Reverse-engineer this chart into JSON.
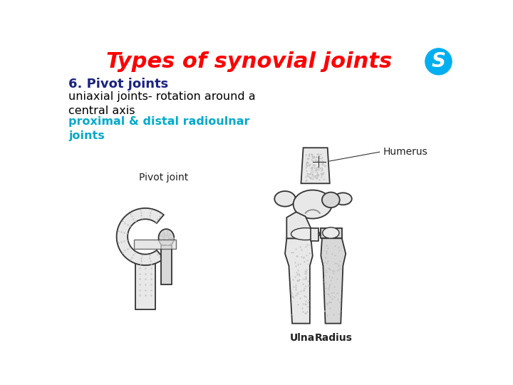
{
  "title": "Types of synovial joints",
  "title_color": "#FF0000",
  "title_fontsize": 22,
  "background_color": "#FFFFFF",
  "heading_text": "6. Pivot joints",
  "heading_color": "#1a237e",
  "heading_fontsize": 13,
  "body_text": "uniaxial joints- rotation around a\ncentral axis",
  "body_color": "#000000",
  "body_fontsize": 11.5,
  "cyan_text": "proximal & distal radioulnar\njoints",
  "cyan_color": "#00AACC",
  "cyan_fontsize": 11.5,
  "label_pivot": "Pivot joint",
  "label_humerus": "Humerus",
  "label_ulna": "Ulna",
  "label_radius": "Radius",
  "label_fontsize": 10,
  "label_color": "#222222",
  "bone_edge": "#333333",
  "bone_fill": "#E8E8E8",
  "bone_fill2": "#D8D8D8",
  "skype_color": "#00AFF0"
}
